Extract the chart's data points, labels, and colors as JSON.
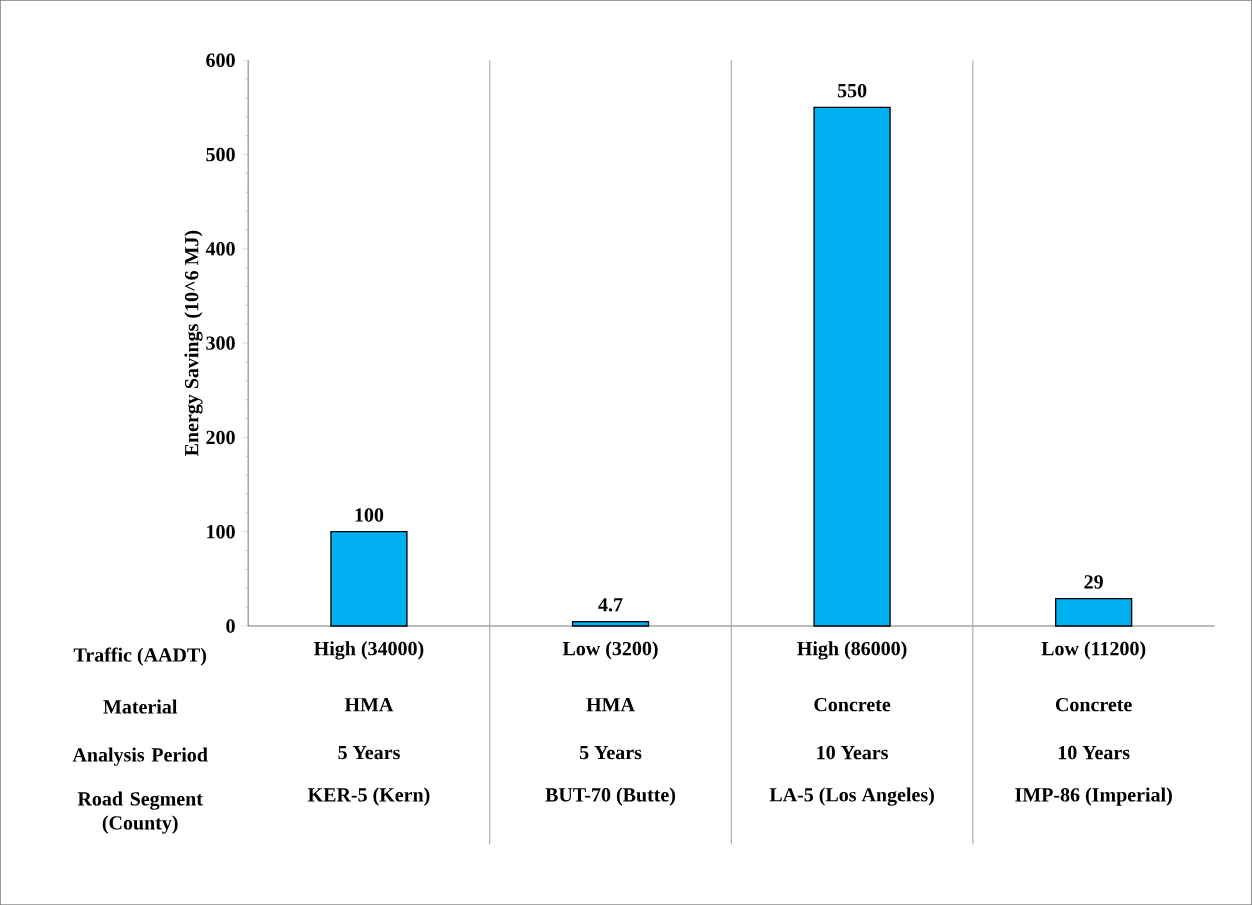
{
  "chart_data": {
    "type": "bar",
    "ylabel": "Energy Savings (10^6 MJ)",
    "categories": [
      "High (34000)",
      "Low (3200)",
      "High (86000)",
      "Low (11200)"
    ],
    "values": [
      100,
      4.7,
      550,
      29
    ],
    "color": "#00b0f0",
    "data_labels": true,
    "ylim": [
      0,
      600
    ],
    "yticks": [
      0,
      100,
      200,
      300,
      400,
      500,
      600
    ],
    "grid": false,
    "annotations": [
      "Traffic (AADT)",
      "Material",
      "HMA",
      "HMA",
      "Concrete",
      "Concrete",
      "Analysis Period",
      "5 Years",
      "5 Years",
      "10 Years",
      "10 Years",
      "Road Segment (County)",
      "KER-5 (Kern)",
      "BUT-70 (Butte)",
      "LA-5 (Los Angeles)",
      "IMP-86 (Imperial)"
    ]
  }
}
